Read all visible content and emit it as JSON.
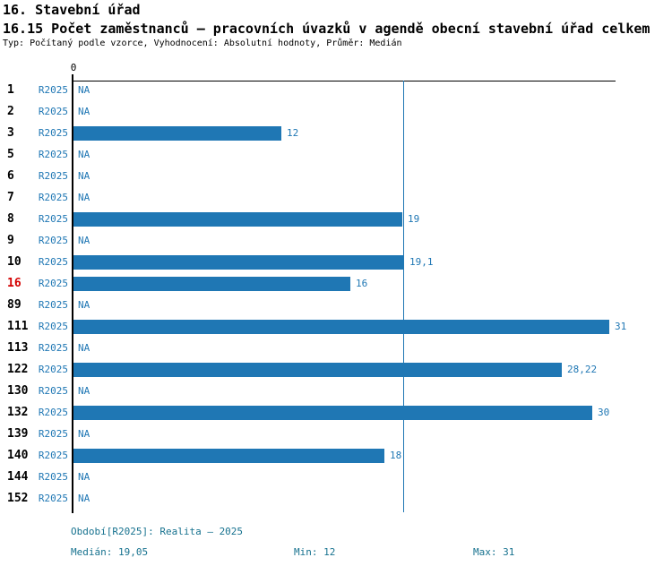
{
  "header": {
    "title": "16. Stavební úřad",
    "subtitle": "16.15 Počet zaměstnanců – pracovních úvazků v agendě obecní stavební úřad celkem",
    "meta": "Typ: Počítaný podle vzorce, Vyhodnocení: Absolutní hodnoty, Průměr: Medián"
  },
  "chart_data": {
    "type": "bar",
    "orientation": "horizontal",
    "title": "16.15 Počet zaměstnanců – pracovních úvazků v agendě obecní stavební úřad celkem",
    "x_axis": {
      "origin_tick_label": "0",
      "min": 0,
      "max_shown_value": 31
    },
    "period_label": "R2025",
    "na_text": "NA",
    "rows": [
      {
        "id": "1",
        "period": "R2025",
        "value": null,
        "label": "NA",
        "highlight": false
      },
      {
        "id": "2",
        "period": "R2025",
        "value": null,
        "label": "NA",
        "highlight": false
      },
      {
        "id": "3",
        "period": "R2025",
        "value": 12,
        "label": "12",
        "highlight": false
      },
      {
        "id": "5",
        "period": "R2025",
        "value": null,
        "label": "NA",
        "highlight": false
      },
      {
        "id": "6",
        "period": "R2025",
        "value": null,
        "label": "NA",
        "highlight": false
      },
      {
        "id": "7",
        "period": "R2025",
        "value": null,
        "label": "NA",
        "highlight": false
      },
      {
        "id": "8",
        "period": "R2025",
        "value": 19,
        "label": "19",
        "highlight": false
      },
      {
        "id": "9",
        "period": "R2025",
        "value": null,
        "label": "NA",
        "highlight": false
      },
      {
        "id": "10",
        "period": "R2025",
        "value": 19.1,
        "label": "19,1",
        "highlight": false
      },
      {
        "id": "16",
        "period": "R2025",
        "value": 16,
        "label": "16",
        "highlight": true
      },
      {
        "id": "89",
        "period": "R2025",
        "value": null,
        "label": "NA",
        "highlight": false
      },
      {
        "id": "111",
        "period": "R2025",
        "value": 31,
        "label": "31",
        "highlight": false
      },
      {
        "id": "113",
        "period": "R2025",
        "value": null,
        "label": "NA",
        "highlight": false
      },
      {
        "id": "122",
        "period": "R2025",
        "value": 28.22,
        "label": "28,22",
        "highlight": false
      },
      {
        "id": "130",
        "period": "R2025",
        "value": null,
        "label": "NA",
        "highlight": false
      },
      {
        "id": "132",
        "period": "R2025",
        "value": 30,
        "label": "30",
        "highlight": false
      },
      {
        "id": "139",
        "period": "R2025",
        "value": null,
        "label": "NA",
        "highlight": false
      },
      {
        "id": "140",
        "period": "R2025",
        "value": 18,
        "label": "18",
        "highlight": false
      },
      {
        "id": "144",
        "period": "R2025",
        "value": null,
        "label": "NA",
        "highlight": false
      },
      {
        "id": "152",
        "period": "R2025",
        "value": null,
        "label": "NA",
        "highlight": false
      }
    ],
    "median_value": 19.05,
    "stats": {
      "median": "19,05",
      "min": "12",
      "max": "31"
    },
    "colors": {
      "bar": "#1F77B4",
      "value_text": "#1F77B4",
      "period_text": "#1F77B4",
      "median_line": "#1F77B4",
      "highlight_row": "#D40000",
      "footer_text": "#17728F",
      "axis": "#000000"
    },
    "legend_position": "none",
    "grid": false
  },
  "footer": {
    "period_info": "Období[R2025]: Realita – 2025",
    "median": "Medián: 19,05",
    "min": "Min: 12",
    "max": "Max: 31"
  }
}
